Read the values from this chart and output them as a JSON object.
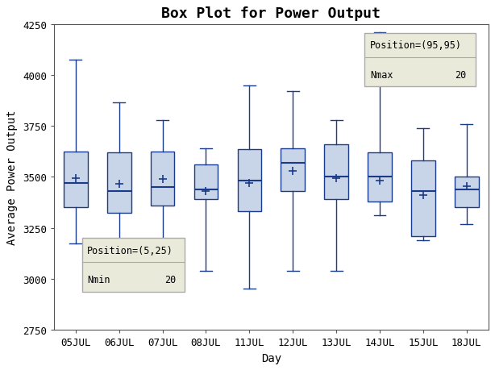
{
  "title": "Box Plot for Power Output",
  "xlabel": "Day",
  "ylabel": "Average Power Output",
  "categories": [
    "05JUL",
    "06JUL",
    "07JUL",
    "08JUL",
    "11JUL",
    "12JUL",
    "13JUL",
    "14JUL",
    "15JUL",
    "18JUL"
  ],
  "ylim": [
    2750,
    4250
  ],
  "yticks": [
    2750,
    3000,
    3250,
    3500,
    3750,
    4000,
    4250
  ],
  "box_data": [
    {
      "whislo": 3175,
      "q1": 3350,
      "med": 3470,
      "q3": 3625,
      "whishi": 4075,
      "mean": 3495
    },
    {
      "whislo": 3175,
      "q1": 3325,
      "med": 3430,
      "q3": 3620,
      "whishi": 3865,
      "mean": 3465
    },
    {
      "whislo": 3155,
      "q1": 3360,
      "med": 3450,
      "q3": 3625,
      "whishi": 3780,
      "mean": 3490
    },
    {
      "whislo": 3040,
      "q1": 3390,
      "med": 3440,
      "q3": 3560,
      "whishi": 3640,
      "mean": 3430
    },
    {
      "whislo": 2950,
      "q1": 3330,
      "med": 3480,
      "q3": 3635,
      "whishi": 3950,
      "mean": 3470
    },
    {
      "whislo": 3040,
      "q1": 3430,
      "med": 3570,
      "q3": 3640,
      "whishi": 3920,
      "mean": 3530
    },
    {
      "whislo": 3040,
      "q1": 3390,
      "med": 3500,
      "q3": 3660,
      "whishi": 3780,
      "mean": 3495
    },
    {
      "whislo": 3310,
      "q1": 3380,
      "med": 3500,
      "q3": 3620,
      "whishi": 4210,
      "mean": 3480
    },
    {
      "whislo": 3190,
      "q1": 3210,
      "med": 3430,
      "q3": 3580,
      "whishi": 3740,
      "mean": 3410
    },
    {
      "whislo": 3270,
      "q1": 3350,
      "med": 3440,
      "q3": 3500,
      "whishi": 3760,
      "mean": 3455
    }
  ],
  "box_facecolor": "#c8d4e8",
  "box_edgecolor": "#1a3a8a",
  "median_color": "#1a3a8a",
  "whisker_color": "#1a3a8a",
  "cap_color": "#1a3a8a",
  "mean_color": "#1a3a8a",
  "background_color": "#ffffff",
  "plot_bg_color": "#ffffff",
  "inset_bottom": {
    "position_label": "Position=(5,25)",
    "nmin_label": "Nmin",
    "nmin_value": "20",
    "bg_color": "#eaeada",
    "border_color": "#aaaaaa",
    "divider_color": "#aaaaaa"
  },
  "inset_top": {
    "position_label": "Position=(95,95)",
    "nmax_label": "Nmax",
    "nmax_value": "20",
    "bg_color": "#eaeada",
    "border_color": "#aaaaaa",
    "divider_color": "#aaaaaa"
  },
  "title_fontsize": 13,
  "axis_label_fontsize": 10,
  "tick_fontsize": 9
}
